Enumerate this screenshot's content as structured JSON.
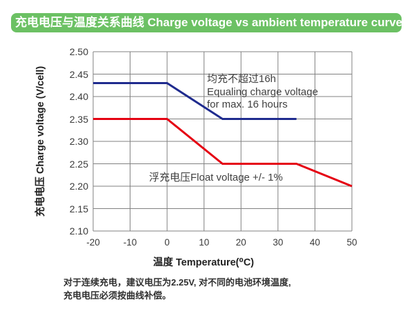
{
  "banner": {
    "title": "充电电压与温度关系曲线 Charge voltage vs ambient temperature curve",
    "bg_color": "#6cc164",
    "text_color": "#ffffff"
  },
  "chart_data": {
    "type": "line",
    "xlabel": "温度 Temperature(⁰C)",
    "ylabel": "充电电压 Charge voltage (V/cell)",
    "xlim": [
      -20,
      50
    ],
    "ylim": [
      2.1,
      2.5
    ],
    "grid": true,
    "grid_color": "#808080",
    "legend_position": "none",
    "x_ticks": [
      {
        "v": -20,
        "label": "-20"
      },
      {
        "v": -10,
        "label": "-10"
      },
      {
        "v": 0,
        "label": "0"
      },
      {
        "v": 10,
        "label": "10"
      },
      {
        "v": 20,
        "label": "20"
      },
      {
        "v": 30,
        "label": "30"
      },
      {
        "v": 40,
        "label": "40"
      },
      {
        "v": 50,
        "label": "50"
      }
    ],
    "y_ticks": [
      {
        "v": 2.5,
        "label": "2.50"
      },
      {
        "v": 2.45,
        "label": "2.45"
      },
      {
        "v": 2.4,
        "label": "2.40"
      },
      {
        "v": 2.35,
        "label": "2.35"
      },
      {
        "v": 2.3,
        "label": "2.30"
      },
      {
        "v": 2.25,
        "label": "2.25"
      },
      {
        "v": 2.2,
        "label": "2.20"
      },
      {
        "v": 2.15,
        "label": "2.15"
      },
      {
        "v": 2.1,
        "label": "2.10"
      }
    ],
    "series": [
      {
        "id": "equalize",
        "name": "Equalizing charge voltage",
        "color": "#1f2b8e",
        "points": [
          [
            -20,
            2.43
          ],
          [
            0,
            2.43
          ],
          [
            15,
            2.35
          ],
          [
            35,
            2.35
          ]
        ]
      },
      {
        "id": "float",
        "name": "Float voltage",
        "color": "#e50012",
        "points": [
          [
            -20,
            2.35
          ],
          [
            0,
            2.35
          ],
          [
            15,
            2.25
          ],
          [
            35,
            2.25
          ],
          [
            50,
            2.2
          ]
        ]
      }
    ],
    "annotations": [
      {
        "id": "equalize-note",
        "lines": [
          "均充不超过16h",
          "Equaling charge voltage",
          "for max. 16 hours"
        ]
      },
      {
        "id": "float-note",
        "lines": [
          "浮充电压Float voltage +/- 1%"
        ]
      }
    ]
  },
  "footer": {
    "line1": "对于连续充电，建议电压为2.25V, 对不同的电池环境温度,",
    "line2": "充电电压必须按曲线补偿。"
  }
}
